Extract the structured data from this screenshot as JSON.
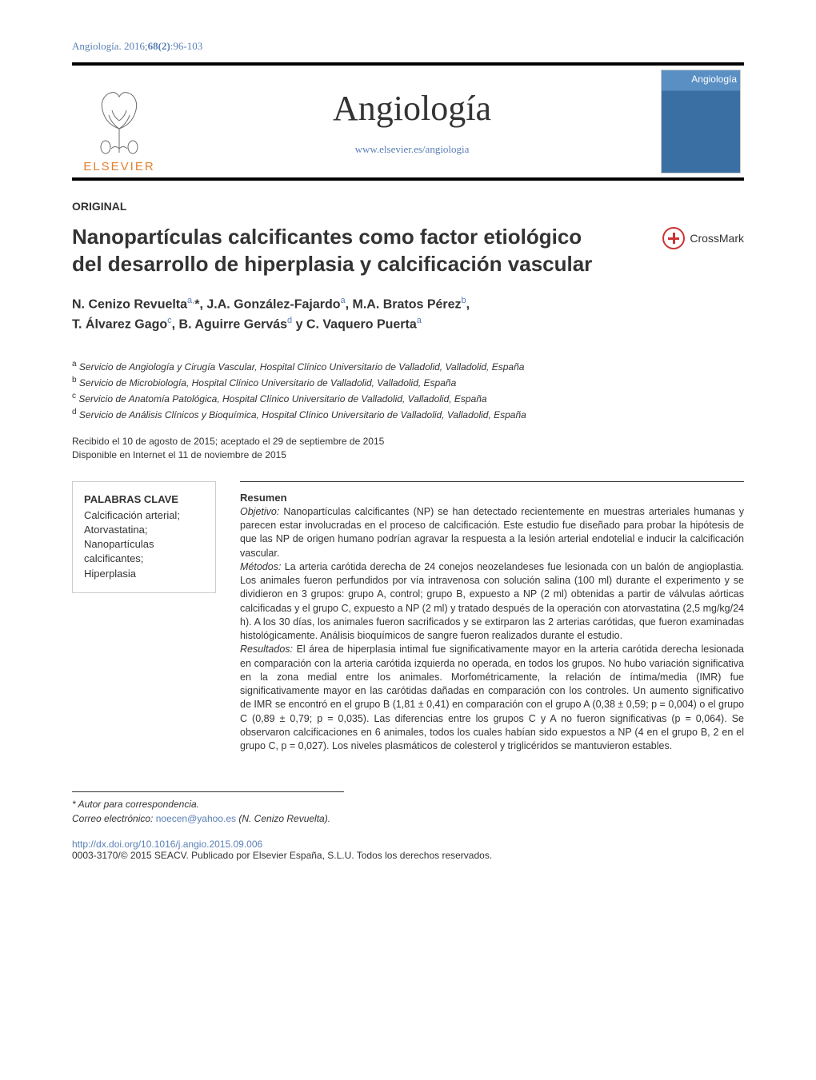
{
  "header": {
    "citation_prefix": "Angiología. 2016;",
    "volume_issue": "68(2)",
    "pages": ":96-103"
  },
  "masthead": {
    "publisher": "ELSEVIER",
    "journal_title": "Angiología",
    "journal_url": "www.elsevier.es/angiologia",
    "cover_label": "Angiología"
  },
  "article": {
    "section_type": "ORIGINAL",
    "title_line1": "Nanopartículas calcificantes como factor etiológico",
    "title_line2": "del desarrollo de hiperplasia y calcificación vascular",
    "crossmark_label": "CrossMark"
  },
  "authors_html": "N. Cenizo Revuelta<span class='sup'>a,</span>*<span class='sup'></span>, J.A. González-Fajardo<span class='sup'>a</span>, M.A. Bratos Pérez<span class='sup'>b</span>,<br>T. Álvarez Gago<span class='sup'>c</span>, B. Aguirre Gervás<span class='sup'>d</span> y C. Vaquero Puerta<span class='sup'>a</span>",
  "affiliations": [
    {
      "sup": "a",
      "text": "Servicio de Angiología y Cirugía Vascular, Hospital Clínico Universitario de Valladolid, Valladolid, España"
    },
    {
      "sup": "b",
      "text": "Servicio de Microbiología, Hospital Clínico Universitario de Valladolid, Valladolid, España"
    },
    {
      "sup": "c",
      "text": "Servicio de Anatomía Patológica, Hospital Clínico Universitario de Valladolid, Valladolid, España"
    },
    {
      "sup": "d",
      "text": "Servicio de Análisis Clínicos y Bioquímica, Hospital Clínico Universitario de Valladolid, Valladolid, España"
    }
  ],
  "dates": {
    "received_accepted": "Recibido el 10 de agosto de 2015; aceptado el 29 de septiembre de 2015",
    "online": "Disponible en Internet el 11 de noviembre de 2015"
  },
  "keywords": {
    "heading": "PALABRAS CLAVE",
    "items": "Calcificación arterial;\nAtorvastatina;\nNanopartículas\ncalcificantes;\nHiperplasia"
  },
  "abstract": {
    "heading": "Resumen",
    "objetivo_label": "Objetivo:",
    "objetivo": " Nanopartículas calcificantes (NP) se han detectado recientemente en muestras arteriales humanas y parecen estar involucradas en el proceso de calcificación. Este estudio fue diseñado para probar la hipótesis de que las NP de origen humano podrían agravar la respuesta a la lesión arterial endotelial e inducir la calcificación vascular.",
    "metodos_label": "Métodos:",
    "metodos": " La arteria carótida derecha de 24 conejos neozelandeses fue lesionada con un balón de angioplastia. Los animales fueron perfundidos por vía intravenosa con solución salina (100 ml) durante el experimento y se dividieron en 3 grupos: grupo A, control; grupo B, expuesto a NP (2 ml) obtenidas a partir de válvulas aórticas calcificadas y el grupo C, expuesto a NP (2 ml) y tratado después de la operación con atorvastatina (2,5 mg/kg/24 h). A los 30 días, los animales fueron sacrificados y se extirparon las 2 arterias carótidas, que fueron examinadas histológicamente. Análisis bioquímicos de sangre fueron realizados durante el estudio.",
    "resultados_label": "Resultados:",
    "resultados": " El área de hiperplasia intimal fue significativamente mayor en la arteria carótida derecha lesionada en comparación con la arteria carótida izquierda no operada, en todos los grupos. No hubo variación significativa en la zona medial entre los animales. Morfométricamente, la relación de íntima/media (IMR) fue significativamente mayor en las carótidas dañadas en comparación con los controles. Un aumento significativo de IMR se encontró en el grupo B (1,81 ± 0,41) en comparación con el grupo A (0,38 ± 0,59; p = 0,004) o el grupo C (0,89 ± 0,79; p = 0,035). Las diferencias entre los grupos C y A no fueron significativas (p = 0,064). Se observaron calcificaciones en 6 animales, todos los cuales habían sido expuestos a NP (4 en el grupo B, 2 en el grupo C, p = 0,027). Los niveles plasmáticos de colesterol y triglicéridos se mantuvieron estables."
  },
  "correspondence": {
    "label": "Autor para correspondencia.",
    "email_label": "Correo electrónico:",
    "email": "noecen@yahoo.es",
    "name_paren": "(N. Cenizo Revuelta)."
  },
  "footer": {
    "doi": "http://dx.doi.org/10.1016/j.angio.2015.09.006",
    "copyright": "0003-3170/© 2015 SEACV. Publicado por Elsevier España, S.L.U. Todos los derechos reservados."
  },
  "colors": {
    "link": "#5a7fb5",
    "accent_orange": "#e57f2c",
    "rule": "#000000",
    "text": "#333333",
    "box_border": "#cccccc"
  }
}
